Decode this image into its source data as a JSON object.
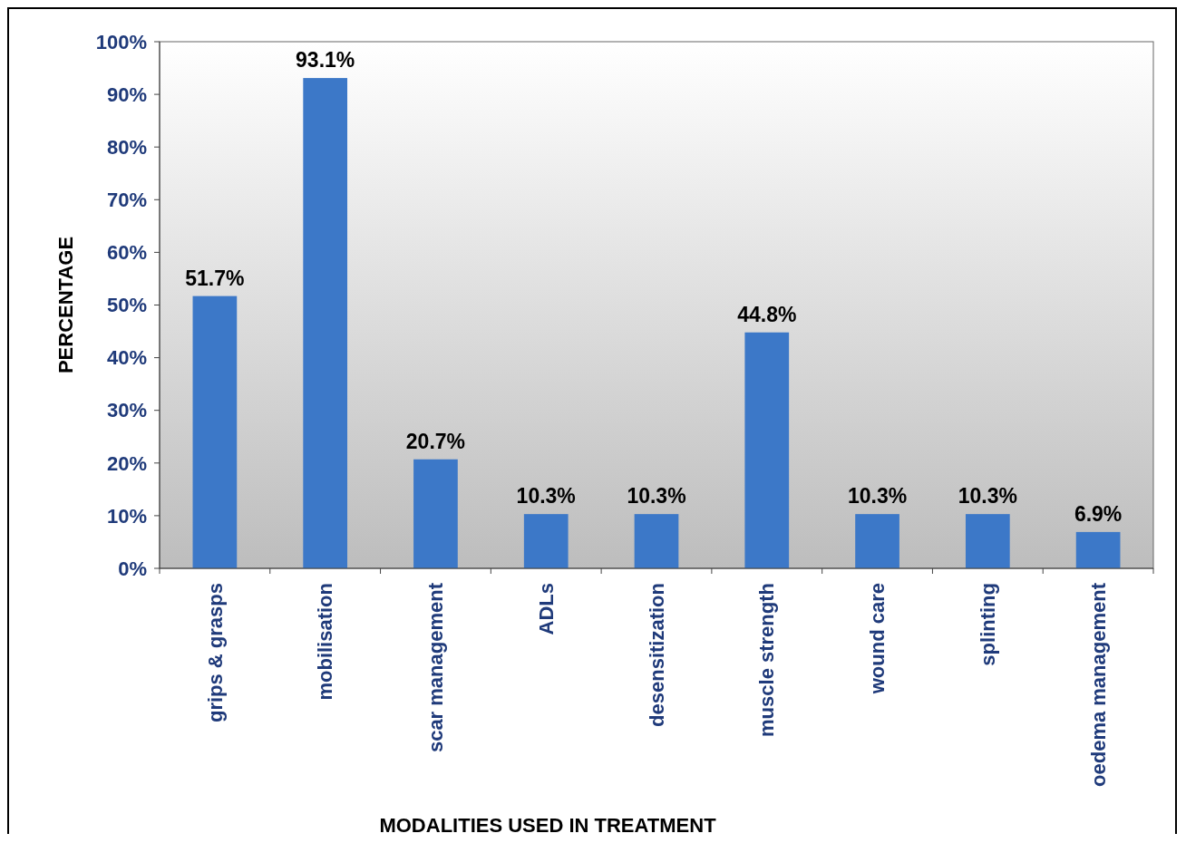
{
  "chart_data": {
    "type": "bar",
    "xlabel": "MODALITIES USED IN TREATMENT",
    "ylabel": "PERCENTAGE",
    "categories": [
      "grips & grasps",
      "mobilisation",
      "scar management",
      "ADLs",
      "desensitization",
      "muscle strength",
      "wound care",
      "splinting",
      "oedema management"
    ],
    "values": [
      51.7,
      93.1,
      20.7,
      10.3,
      10.3,
      44.8,
      10.3,
      10.3,
      6.9
    ],
    "value_labels": [
      "51.7%",
      "93.1%",
      "20.7%",
      "10.3%",
      "10.3%",
      "44.8%",
      "10.3%",
      "10.3%",
      "6.9%"
    ],
    "color": "#3c78c8",
    "ylim": [
      0,
      100
    ],
    "yticks": [
      {
        "value": 0,
        "label": "0%"
      },
      {
        "value": 10,
        "label": "10%"
      },
      {
        "value": 20,
        "label": "20%"
      },
      {
        "value": 30,
        "label": "30%"
      },
      {
        "value": 40,
        "label": "40%"
      },
      {
        "value": 50,
        "label": "50%"
      },
      {
        "value": 60,
        "label": "60%"
      },
      {
        "value": 70,
        "label": "70%"
      },
      {
        "value": 80,
        "label": "80%"
      },
      {
        "value": 90,
        "label": "90%"
      },
      {
        "value": 100,
        "label": "100%"
      }
    ],
    "grid": false
  }
}
